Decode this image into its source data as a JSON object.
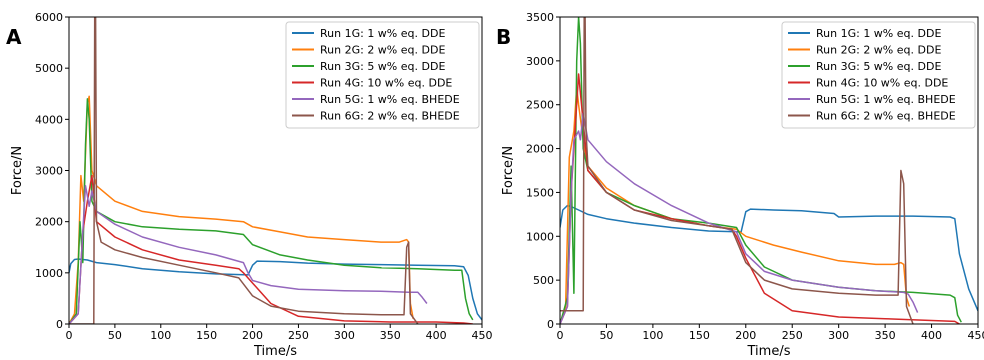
{
  "chart_data": [
    {
      "type": "line",
      "panel": "A",
      "xlabel": "Time/s",
      "ylabel": "Force/N",
      "xlim": [
        0,
        450
      ],
      "ylim": [
        0,
        6000
      ],
      "xticks": [
        0,
        50,
        100,
        150,
        200,
        250,
        300,
        350,
        400,
        450
      ],
      "yticks": [
        0,
        1000,
        2000,
        3000,
        4000,
        5000,
        6000
      ],
      "grid": false,
      "legend": "top-right",
      "series": [
        {
          "name": "Run 1G: 1 w% eq. DDE",
          "color": "#1f77b4",
          "x": [
            0,
            2,
            6,
            10,
            20,
            30,
            50,
            80,
            120,
            160,
            195,
            200,
            205,
            230,
            260,
            300,
            340,
            380,
            420,
            430,
            435,
            440,
            445,
            450
          ],
          "y": [
            1000,
            1180,
            1260,
            1270,
            1250,
            1200,
            1160,
            1080,
            1020,
            980,
            960,
            1150,
            1230,
            1220,
            1190,
            1170,
            1160,
            1150,
            1140,
            1120,
            950,
            500,
            200,
            80
          ]
        },
        {
          "name": "Run 2G: 2 w% eq. DDE",
          "color": "#ff7f0e",
          "x": [
            0,
            6,
            10,
            13,
            16,
            20,
            22,
            25,
            30,
            50,
            80,
            120,
            160,
            190,
            200,
            230,
            260,
            300,
            340,
            360,
            368,
            370,
            372,
            375
          ],
          "y": [
            0,
            200,
            1200,
            2900,
            2400,
            4300,
            4450,
            3000,
            2700,
            2400,
            2200,
            2100,
            2050,
            2000,
            1900,
            1800,
            1700,
            1650,
            1600,
            1600,
            1650,
            1600,
            400,
            100
          ]
        },
        {
          "name": "Run 3G: 5 w% eq. DDE",
          "color": "#2ca02c",
          "x": [
            0,
            8,
            12,
            15,
            18,
            20,
            22,
            25,
            30,
            50,
            80,
            120,
            160,
            190,
            200,
            230,
            260,
            300,
            340,
            380,
            420,
            428,
            432,
            436,
            440
          ],
          "y": [
            0,
            200,
            2000,
            1200,
            3500,
            4400,
            4000,
            2400,
            2200,
            2000,
            1900,
            1850,
            1820,
            1750,
            1550,
            1350,
            1250,
            1150,
            1100,
            1080,
            1050,
            1050,
            500,
            200,
            80
          ]
        },
        {
          "name": "Run 4G: 10 w% eq. DDE",
          "color": "#d62728",
          "x": [
            0,
            10,
            15,
            20,
            25,
            30,
            50,
            80,
            120,
            160,
            185,
            190,
            200,
            220,
            250,
            300,
            350,
            400,
            430,
            440
          ],
          "y": [
            0,
            200,
            1800,
            2400,
            2900,
            2000,
            1700,
            1450,
            1250,
            1150,
            1080,
            1000,
            800,
            400,
            150,
            60,
            40,
            40,
            20,
            0
          ]
        },
        {
          "name": "Run 5G: 1 w% eq. BHEDE",
          "color": "#9467bd",
          "x": [
            0,
            10,
            15,
            18,
            20,
            22,
            25,
            30,
            50,
            80,
            120,
            160,
            190,
            195,
            200,
            220,
            250,
            300,
            340,
            370,
            380,
            385,
            390
          ],
          "y": [
            0,
            200,
            1800,
            2700,
            2500,
            2300,
            2600,
            2200,
            1950,
            1700,
            1500,
            1350,
            1200,
            1000,
            850,
            750,
            680,
            650,
            640,
            620,
            620,
            520,
            400
          ]
        },
        {
          "name": "Run 6G: 2 w% eq. BHEDE",
          "color": "#8c564b",
          "x": [
            0,
            10,
            27,
            28,
            29,
            30,
            35,
            50,
            80,
            120,
            160,
            185,
            200,
            220,
            250,
            300,
            340,
            365,
            368,
            370,
            372,
            380
          ],
          "y": [
            0,
            0,
            0,
            6000,
            6000,
            2000,
            1600,
            1450,
            1300,
            1150,
            1000,
            900,
            550,
            350,
            250,
            200,
            180,
            180,
            1500,
            1600,
            200,
            0
          ]
        }
      ]
    },
    {
      "type": "line",
      "panel": "B",
      "xlabel": "Time/s",
      "ylabel": "Force/N",
      "xlim": [
        0,
        450
      ],
      "ylim": [
        0,
        3500
      ],
      "xticks": [
        0,
        50,
        100,
        150,
        200,
        250,
        300,
        350,
        400,
        450
      ],
      "yticks": [
        0,
        500,
        1000,
        1500,
        2000,
        2500,
        3000,
        3500
      ],
      "grid": false,
      "legend": "top-right",
      "series": [
        {
          "name": "Run 1G: 1 w% eq. DDE",
          "color": "#1f77b4",
          "x": [
            0,
            3,
            8,
            12,
            20,
            30,
            50,
            80,
            120,
            160,
            195,
            200,
            205,
            230,
            260,
            295,
            300,
            340,
            380,
            420,
            425,
            430,
            440,
            450
          ],
          "y": [
            1100,
            1300,
            1350,
            1340,
            1300,
            1250,
            1200,
            1150,
            1100,
            1060,
            1050,
            1280,
            1310,
            1300,
            1290,
            1260,
            1220,
            1230,
            1230,
            1220,
            1200,
            800,
            400,
            150
          ]
        },
        {
          "name": "Run 2G: 2 w% eq. DDE",
          "color": "#ff7f0e",
          "x": [
            0,
            6,
            10,
            15,
            18,
            20,
            25,
            30,
            50,
            80,
            120,
            160,
            190,
            200,
            230,
            260,
            300,
            340,
            360,
            367,
            370,
            373,
            376
          ],
          "y": [
            0,
            200,
            1900,
            2200,
            2700,
            2500,
            2100,
            1800,
            1550,
            1350,
            1200,
            1120,
            1080,
            1000,
            900,
            820,
            720,
            680,
            680,
            700,
            680,
            300,
            200
          ]
        },
        {
          "name": "Run 3G: 5 w% eq. DDE",
          "color": "#2ca02c",
          "x": [
            0,
            8,
            12,
            15,
            18,
            20,
            22,
            25,
            30,
            50,
            80,
            120,
            160,
            190,
            200,
            220,
            250,
            300,
            340,
            380,
            420,
            425,
            428,
            432
          ],
          "y": [
            0,
            300,
            1800,
            350,
            3000,
            3500,
            3200,
            2000,
            1750,
            1500,
            1350,
            1200,
            1150,
            1100,
            900,
            650,
            500,
            420,
            380,
            360,
            330,
            300,
            100,
            20
          ]
        },
        {
          "name": "Run 4G: 10 w% eq. DDE",
          "color": "#d62728",
          "x": [
            0,
            8,
            12,
            15,
            20,
            25,
            30,
            50,
            80,
            120,
            160,
            185,
            190,
            200,
            220,
            250,
            300,
            350,
            400,
            425,
            430
          ],
          "y": [
            0,
            200,
            1500,
            2000,
            2850,
            2300,
            1750,
            1500,
            1300,
            1200,
            1120,
            1080,
            1000,
            750,
            350,
            150,
            80,
            60,
            40,
            30,
            0
          ]
        },
        {
          "name": "Run 5G: 1 w% eq. BHEDE",
          "color": "#9467bd",
          "x": [
            0,
            8,
            12,
            15,
            20,
            22,
            25,
            30,
            50,
            80,
            120,
            160,
            190,
            200,
            220,
            250,
            300,
            340,
            370,
            375,
            380,
            385
          ],
          "y": [
            0,
            200,
            1500,
            2100,
            2200,
            2100,
            2400,
            2100,
            1850,
            1600,
            1350,
            1150,
            1050,
            800,
            600,
            500,
            420,
            380,
            360,
            340,
            250,
            130
          ]
        },
        {
          "name": "Run 6G: 2 w% eq. BHEDE",
          "color": "#8c564b",
          "x": [
            0,
            5,
            25,
            26,
            27,
            28,
            30,
            50,
            80,
            120,
            160,
            185,
            200,
            220,
            250,
            300,
            340,
            364,
            367,
            370,
            373,
            380
          ],
          "y": [
            150,
            150,
            150,
            3500,
            3500,
            2200,
            1800,
            1500,
            1300,
            1180,
            1120,
            1080,
            700,
            500,
            400,
            350,
            330,
            330,
            1750,
            1600,
            200,
            0
          ]
        }
      ]
    }
  ]
}
